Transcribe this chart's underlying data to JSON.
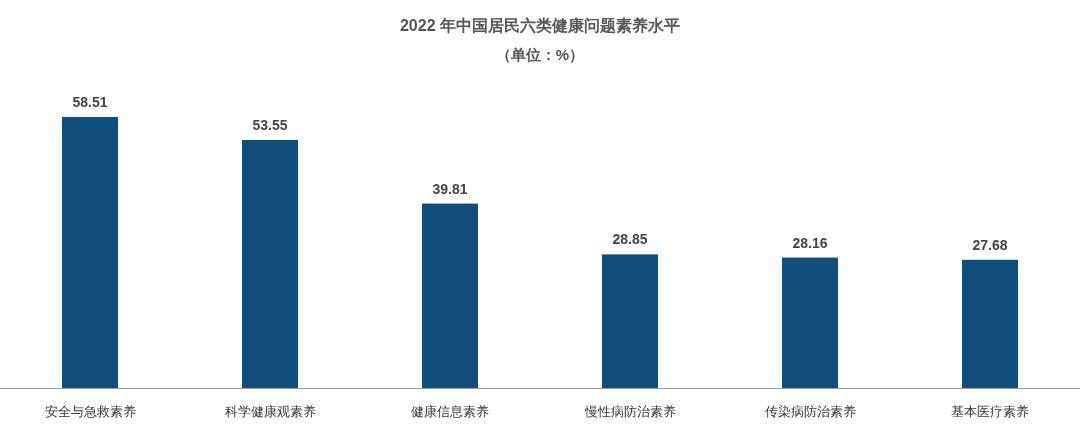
{
  "chart_data": {
    "type": "bar",
    "title": "2022 年中国居民六类健康问题素养水平",
    "subtitle": "（单位：%）",
    "categories": [
      "安全与急救素养",
      "科学健康观素养",
      "健康信息素养",
      "慢性病防治素养",
      "传染病防治素养",
      "基本医疗素养"
    ],
    "values": [
      58.51,
      53.55,
      39.81,
      28.85,
      28.16,
      27.68
    ],
    "color": "#134f7c",
    "data_labels": true
  }
}
